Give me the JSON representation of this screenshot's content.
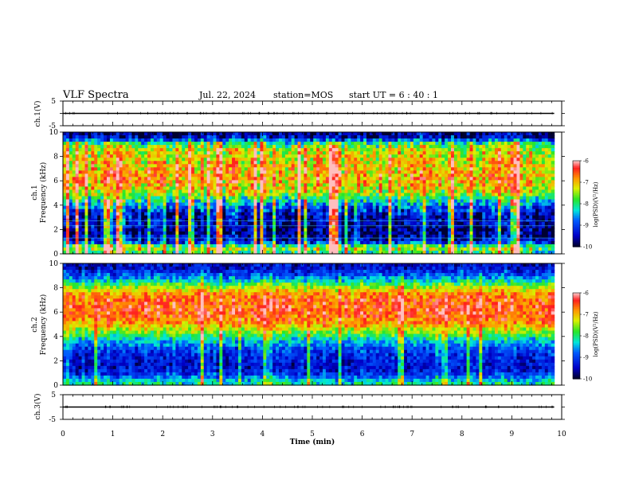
{
  "header": {
    "title": "VLF Spectra",
    "date": "Jul. 22, 2024",
    "station": "station=MOS",
    "start": "start UT =  6 : 40 : 1"
  },
  "chart_data": [
    {
      "type": "line",
      "name": "ch1-waveform",
      "ylabel": "ch.1(V)",
      "ylim": [
        -5,
        5
      ],
      "yticks": [
        "5",
        "-5"
      ],
      "x": [
        0,
        9.85
      ],
      "y": [
        0,
        0
      ]
    },
    {
      "type": "heatmap",
      "name": "ch1-spectrogram",
      "ylabel": [
        "ch.1",
        "Frequency (kHz)"
      ],
      "ylim": [
        0,
        10
      ],
      "yticks": [
        "0",
        "2",
        "4",
        "6",
        "8",
        "10"
      ],
      "xlim": [
        0,
        10
      ],
      "data_xmax": 9.85,
      "profile_freq_khz": [
        0,
        0.5,
        1,
        1.5,
        2,
        2.5,
        3,
        3.5,
        4,
        4.5,
        5,
        5.5,
        6,
        6.5,
        7,
        7.5,
        8,
        8.5,
        9,
        9.5,
        10
      ],
      "profile_log_psd": [
        -8.2,
        -7.3,
        -9.3,
        -9.6,
        -9.7,
        -9.5,
        -9.5,
        -9.2,
        -8.6,
        -8.0,
        -7.4,
        -7.1,
        -6.9,
        -6.9,
        -7.0,
        -7.1,
        -7.2,
        -7.3,
        -7.8,
        -9.3,
        -9.8
      ],
      "colorbar": {
        "label": "log(PSD)(V²/Hz)",
        "min": -10,
        "max": -6,
        "ticks": [
          "-6",
          "-7",
          "-8",
          "-9",
          "-10"
        ]
      }
    },
    {
      "type": "heatmap",
      "name": "ch2-spectrogram",
      "ylabel": [
        "ch.2",
        "Frequency (kHz)"
      ],
      "ylim": [
        0,
        10
      ],
      "yticks": [
        "0",
        "2",
        "4",
        "6",
        "8",
        "10"
      ],
      "xlim": [
        0,
        10
      ],
      "data_xmax": 9.85,
      "profile_freq_khz": [
        0,
        0.5,
        1,
        1.5,
        2,
        2.5,
        3,
        3.5,
        4,
        4.5,
        5,
        5.5,
        6,
        6.5,
        7,
        7.5,
        8,
        8.5,
        9,
        9.5,
        10
      ],
      "profile_log_psd": [
        -8.0,
        -8.6,
        -9.2,
        -9.4,
        -9.3,
        -9.2,
        -9.0,
        -8.6,
        -8.0,
        -7.4,
        -6.9,
        -6.6,
        -6.5,
        -6.5,
        -6.6,
        -6.8,
        -7.4,
        -8.2,
        -8.9,
        -9.3,
        -9.5
      ],
      "colorbar": {
        "label": "log(PSD)(V²/Hz)",
        "min": -10,
        "max": -6,
        "ticks": [
          "-6",
          "-7",
          "-8",
          "-9",
          "-10"
        ]
      }
    },
    {
      "type": "line",
      "name": "ch3-waveform",
      "ylabel": "ch.3(V)",
      "ylim": [
        -5,
        5
      ],
      "yticks": [
        "5",
        "-5"
      ],
      "x": [
        0,
        9.85
      ],
      "y": [
        0,
        0
      ]
    }
  ],
  "xaxis": {
    "label": "Time (min)",
    "ticks": [
      "0",
      "1",
      "2",
      "3",
      "4",
      "5",
      "6",
      "7",
      "8",
      "9",
      "10"
    ]
  }
}
